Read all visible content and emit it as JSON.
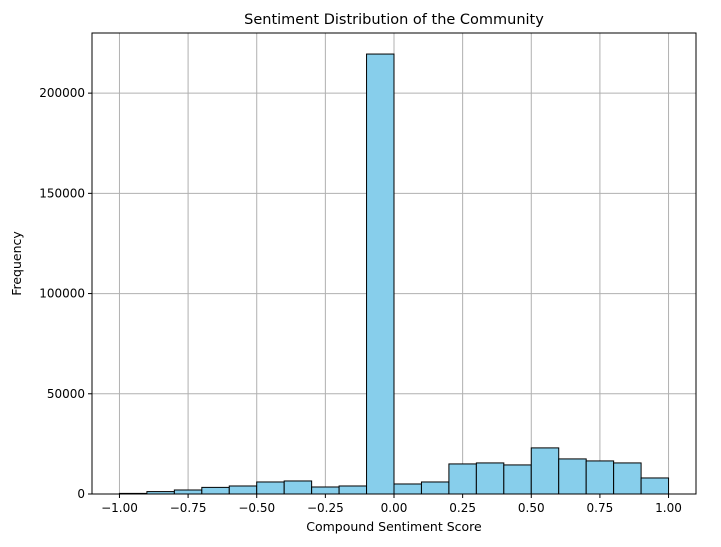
{
  "chart_data": {
    "type": "bar",
    "title": "Sentiment Distribution of the Community",
    "xlabel": "Compound Sentiment Score",
    "ylabel": "Frequency",
    "xlim": [
      -1.1,
      1.1
    ],
    "ylim": [
      0,
      230000
    ],
    "grid": true,
    "bar_color": "#87ceeb",
    "edge_color": "#000000",
    "grid_color": "#b0b0b0",
    "bin_edges": [
      -1.0,
      -0.9,
      -0.8,
      -0.7,
      -0.6,
      -0.5,
      -0.4,
      -0.3,
      -0.2,
      -0.1,
      0.0,
      0.1,
      0.2,
      0.3,
      0.4,
      0.5,
      0.6,
      0.7,
      0.8,
      0.9,
      1.0
    ],
    "values": [
      300,
      1200,
      2000,
      3300,
      4000,
      6000,
      6500,
      3500,
      4000,
      219500,
      5000,
      6000,
      15000,
      15500,
      14500,
      23000,
      17500,
      16500,
      15500,
      8000
    ],
    "xticks": [
      -1.0,
      -0.75,
      -0.5,
      -0.25,
      0.0,
      0.25,
      0.5,
      0.75,
      1.0
    ],
    "xtick_labels": [
      "−1.00",
      "−0.75",
      "−0.50",
      "−0.25",
      "0.00",
      "0.25",
      "0.50",
      "0.75",
      "1.00"
    ],
    "yticks": [
      0,
      50000,
      100000,
      150000,
      200000
    ],
    "ytick_labels": [
      "0",
      "50000",
      "100000",
      "150000",
      "200000"
    ]
  }
}
